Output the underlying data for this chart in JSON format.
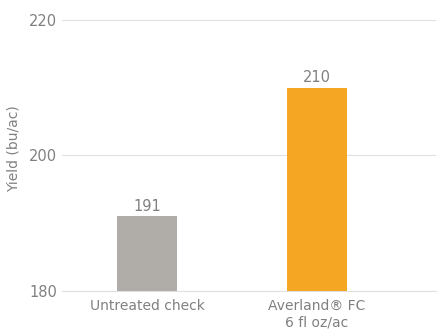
{
  "categories": [
    "Untreated check",
    "Averland® FC\n6 fl oz/ac"
  ],
  "values": [
    191,
    210
  ],
  "bar_colors": [
    "#b0ada8",
    "#f5a623"
  ],
  "value_labels": [
    191,
    210
  ],
  "ylabel": "Yield (bu/ac)",
  "ylim": [
    180,
    222
  ],
  "yticks": [
    180,
    200,
    220
  ],
  "bar_width": 0.35,
  "background_color": "#ffffff",
  "label_fontsize": 10,
  "tick_fontsize": 10.5,
  "ylabel_fontsize": 10,
  "value_label_fontsize": 10.5,
  "text_color": "#808080",
  "grid_color": "#e0e0e0"
}
